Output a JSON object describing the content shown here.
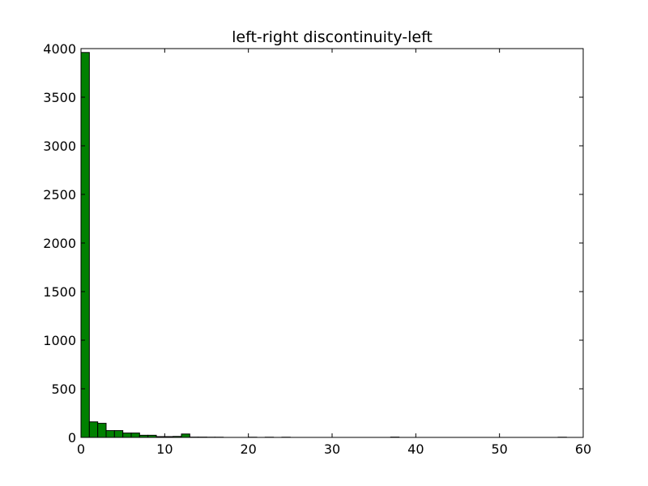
{
  "chart_data": {
    "type": "bar",
    "title": "left-right discontinuity-left",
    "xlabel": "",
    "ylabel": "",
    "xlim": [
      0,
      60
    ],
    "ylim": [
      0,
      4000
    ],
    "x_ticks": [
      "0",
      "10",
      "20",
      "30",
      "40",
      "50",
      "60"
    ],
    "y_ticks": [
      "0",
      "500",
      "1000",
      "1500",
      "2000",
      "2500",
      "3000",
      "3500",
      "4000"
    ],
    "grid": false,
    "legend": "none",
    "bar_color": "#008000",
    "bin_width": 1.0,
    "bins": [
      {
        "x": 0,
        "value": 3960
      },
      {
        "x": 1,
        "value": 160
      },
      {
        "x": 2,
        "value": 145
      },
      {
        "x": 3,
        "value": 70
      },
      {
        "x": 4,
        "value": 70
      },
      {
        "x": 5,
        "value": 45
      },
      {
        "x": 6,
        "value": 45
      },
      {
        "x": 7,
        "value": 22
      },
      {
        "x": 8,
        "value": 22
      },
      {
        "x": 9,
        "value": 8
      },
      {
        "x": 10,
        "value": 8
      },
      {
        "x": 11,
        "value": 10
      },
      {
        "x": 12,
        "value": 35
      },
      {
        "x": 13,
        "value": 3
      },
      {
        "x": 14,
        "value": 3
      },
      {
        "x": 15,
        "value": 2
      },
      {
        "x": 16,
        "value": 2
      },
      {
        "x": 20,
        "value": 2
      },
      {
        "x": 22,
        "value": 2
      },
      {
        "x": 24,
        "value": 2
      },
      {
        "x": 37,
        "value": 3
      },
      {
        "x": 57,
        "value": 2
      }
    ]
  }
}
